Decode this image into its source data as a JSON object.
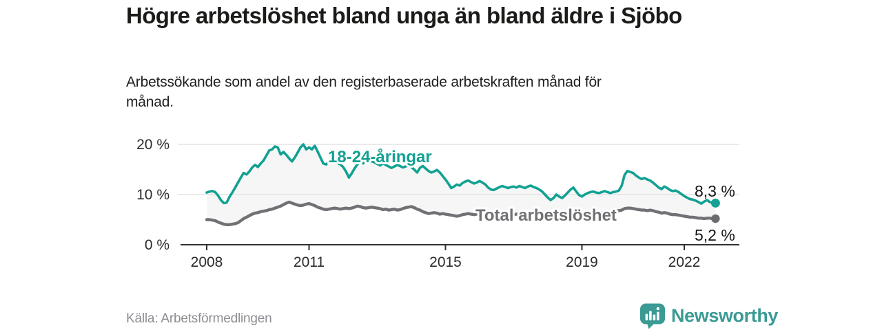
{
  "header": {
    "title": "Högre arbetslöshet bland unga än bland äldre i Sjöbo",
    "subtitle": "Arbetssökande som andel av den registerbaserade arbetskraften månad för månad."
  },
  "footer": {
    "source": "Källa: Arbetsförmedlingen",
    "brand": "Newsworthy"
  },
  "colors": {
    "accent_teal": "#12a192",
    "line_gray": "#717175",
    "dot_gray": "#6a6a6f",
    "area_fill": "#f6f6f6",
    "grid": "#e4e4e4",
    "axis": "#303030",
    "tick_text": "#2b2b2b",
    "end_label_text": "#141414",
    "logo_teal": "#3b9a94",
    "halo": "#ffffff"
  },
  "chart_data": {
    "type": "line",
    "unit": "%",
    "x_start": "2008-01",
    "x_end": "2022-12",
    "months_per_point": 1,
    "x_tick_years": [
      2008,
      2011,
      2015,
      2019,
      2022
    ],
    "x_tick_labels": [
      "2008",
      "2011",
      "2015",
      "2019",
      "2022"
    ],
    "y_ticks": [
      {
        "value": 0,
        "label": "0 %"
      },
      {
        "value": 10,
        "label": "10 %"
      },
      {
        "value": 20,
        "label": "20 %"
      }
    ],
    "y_gridlines": [
      10,
      20
    ],
    "ylim": [
      0,
      21
    ],
    "grid": true,
    "legend_position": "inline-labels",
    "series": [
      {
        "name": "18-24-åringar",
        "color": "#12a192",
        "end_value": 8.3,
        "end_label": "8,3 %",
        "values": [
          10.4,
          10.6,
          10.7,
          10.5,
          9.8,
          8.9,
          8.3,
          8.4,
          9.5,
          10.4,
          11.4,
          12.4,
          13.4,
          14.3,
          14.0,
          14.6,
          15.4,
          15.9,
          15.5,
          16.2,
          16.8,
          17.8,
          18.8,
          19.0,
          19.6,
          19.4,
          18.0,
          18.5,
          17.9,
          17.2,
          16.6,
          17.4,
          18.4,
          19.4,
          20.0,
          19.0,
          19.4,
          19.0,
          19.7,
          18.6,
          17.4,
          16.2,
          16.0,
          16.6,
          17.2,
          16.8,
          16.3,
          16.0,
          15.5,
          14.6,
          13.4,
          14.2,
          15.2,
          16.0,
          16.5,
          16.2,
          16.6,
          16.3,
          16.7,
          16.4,
          16.1,
          15.8,
          16.2,
          15.9,
          15.6,
          15.3,
          15.6,
          15.9,
          15.7,
          15.4,
          15.6,
          15.8,
          15.5,
          15.0,
          14.4,
          15.3,
          15.7,
          15.2,
          14.7,
          14.4,
          14.6,
          14.9,
          14.4,
          13.7,
          13.0,
          12.2,
          11.3,
          11.6,
          12.0,
          11.8,
          12.3,
          12.6,
          12.8,
          12.5,
          12.2,
          12.4,
          12.7,
          12.4,
          12.0,
          11.4,
          11.0,
          10.9,
          11.2,
          11.5,
          11.7,
          11.5,
          11.3,
          11.5,
          11.6,
          11.4,
          11.7,
          11.5,
          11.3,
          11.6,
          11.8,
          11.5,
          11.3,
          11.0,
          10.6,
          10.0,
          9.4,
          8.9,
          9.3,
          10.0,
          9.6,
          9.3,
          9.8,
          10.4,
          11.0,
          11.4,
          10.6,
          9.9,
          9.6,
          10.0,
          10.3,
          10.5,
          10.6,
          10.4,
          10.3,
          10.5,
          10.7,
          10.5,
          10.3,
          10.5,
          10.6,
          10.8,
          11.8,
          13.9,
          14.7,
          14.5,
          14.3,
          13.8,
          13.4,
          13.1,
          13.3,
          13.0,
          12.8,
          12.4,
          11.9,
          11.4,
          11.1,
          11.6,
          11.3,
          10.9,
          10.7,
          10.8,
          10.5,
          10.1,
          9.7,
          9.4,
          9.1,
          9.0,
          8.8,
          8.5,
          8.2,
          8.6,
          8.9,
          8.5,
          8.4,
          8.3
        ]
      },
      {
        "name": "Total arbetslöshet",
        "color": "#717175",
        "end_value": 5.2,
        "end_label": "5,2 %",
        "values": [
          5.0,
          5.0,
          4.9,
          4.8,
          4.5,
          4.3,
          4.1,
          4.0,
          4.0,
          4.1,
          4.2,
          4.4,
          4.8,
          5.2,
          5.5,
          5.8,
          6.1,
          6.3,
          6.4,
          6.6,
          6.7,
          6.8,
          7.0,
          7.1,
          7.3,
          7.5,
          7.7,
          8.0,
          8.3,
          8.5,
          8.3,
          8.1,
          7.9,
          7.8,
          7.9,
          8.1,
          8.2,
          8.0,
          7.8,
          7.5,
          7.3,
          7.1,
          7.0,
          7.1,
          7.2,
          7.3,
          7.2,
          7.1,
          7.2,
          7.3,
          7.2,
          7.3,
          7.5,
          7.7,
          7.6,
          7.4,
          7.3,
          7.4,
          7.5,
          7.4,
          7.3,
          7.2,
          7.0,
          7.1,
          6.9,
          7.0,
          7.1,
          6.9,
          7.0,
          7.2,
          7.4,
          7.5,
          7.6,
          7.4,
          7.1,
          6.9,
          6.6,
          6.4,
          6.2,
          6.3,
          6.4,
          6.3,
          6.1,
          6.2,
          6.1,
          6.0,
          5.9,
          5.8,
          5.7,
          5.8,
          6.0,
          6.1,
          6.2,
          6.1,
          6.0,
          6.1,
          6.2,
          6.1,
          6.0,
          5.9,
          5.8,
          5.9,
          6.0,
          6.1,
          6.2,
          6.1,
          6.0,
          5.9,
          6.0,
          6.1,
          6.2,
          6.1,
          6.0,
          6.1,
          6.2,
          6.1,
          6.0,
          5.9,
          5.8,
          5.9,
          6.0,
          6.1,
          6.2,
          6.3,
          6.2,
          6.1,
          6.2,
          6.3,
          6.4,
          6.5,
          6.4,
          6.3,
          6.3,
          6.2,
          6.2,
          6.3,
          6.4,
          6.4,
          6.5,
          6.4,
          6.4,
          6.5,
          6.6,
          6.7,
          6.7,
          6.8,
          6.9,
          7.2,
          7.3,
          7.3,
          7.2,
          7.1,
          7.0,
          6.9,
          6.9,
          6.8,
          6.9,
          6.8,
          6.6,
          6.5,
          6.3,
          6.4,
          6.3,
          6.1,
          6.0,
          6.0,
          5.9,
          5.8,
          5.7,
          5.6,
          5.5,
          5.5,
          5.4,
          5.3,
          5.3,
          5.2,
          5.3,
          5.3,
          5.2,
          5.2
        ]
      }
    ]
  }
}
